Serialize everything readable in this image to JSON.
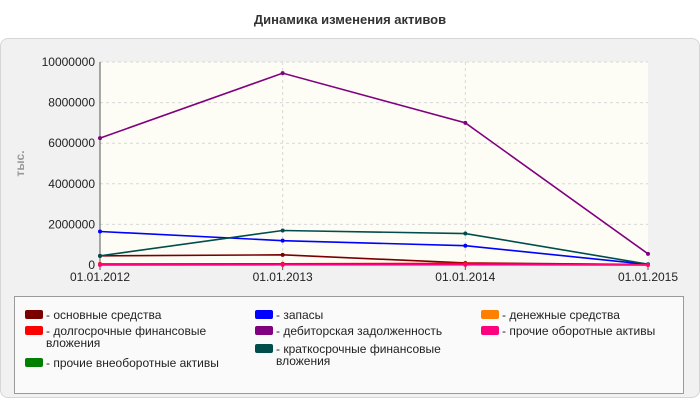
{
  "chart_data": {
    "type": "line",
    "title": "Динамика изменения активов",
    "ylabel": "тыс.",
    "xlabel": "",
    "x": [
      "01.01.2012",
      "01.01.2013",
      "01.01.2014",
      "01.01.2015"
    ],
    "ylim": [
      0,
      10000000
    ],
    "yticks": [
      "0",
      "2000000",
      "4000000",
      "6000000",
      "8000000",
      "10000000"
    ],
    "grid": true,
    "legend_position": "bottom",
    "series": [
      {
        "name": "- основные средства",
        "color": "#7a0000",
        "values": [
          450000,
          500000,
          100000,
          20000
        ]
      },
      {
        "name": "- долгосрочные финансовые вложения",
        "color": "#ff0000",
        "values": [
          50000,
          60000,
          80000,
          15000
        ]
      },
      {
        "name": "- прочие внеоборотные активы",
        "color": "#008000",
        "values": [
          10000,
          15000,
          20000,
          5000
        ]
      },
      {
        "name": "- запасы",
        "color": "#0000ff",
        "values": [
          1650000,
          1200000,
          950000,
          30000
        ]
      },
      {
        "name": "- дебиторская задолженность",
        "color": "#800080",
        "values": [
          6250000,
          9450000,
          7000000,
          550000
        ]
      },
      {
        "name": "- краткосрочные финансовые вложения",
        "color": "#004d4d",
        "values": [
          450000,
          1700000,
          1550000,
          40000
        ]
      },
      {
        "name": "- денежные средства",
        "color": "#ff8000",
        "values": [
          5000,
          8000,
          10000,
          3000
        ]
      },
      {
        "name": "- прочие оборотные активы",
        "color": "#ff0080",
        "values": [
          8000,
          12000,
          15000,
          5000
        ]
      }
    ]
  }
}
